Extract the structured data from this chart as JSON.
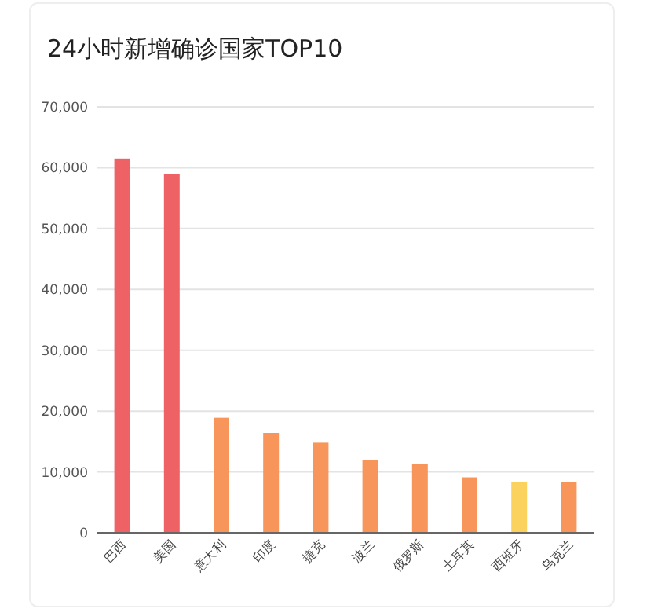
{
  "chart_data": {
    "type": "bar",
    "title": "24小时新增确诊国家TOP10",
    "categories": [
      "巴西",
      "美国",
      "意大利",
      "印度",
      "捷克",
      "波兰",
      "俄罗斯",
      "土耳其",
      "西班牙",
      "乌克兰"
    ],
    "values": [
      61500,
      58900,
      18900,
      16400,
      14800,
      12000,
      11350,
      9100,
      8300,
      8300
    ],
    "colors": [
      "#ee6266",
      "#ee6266",
      "#f7955a",
      "#f7955a",
      "#f7955a",
      "#f7955a",
      "#f7955a",
      "#f7955a",
      "#fcd25f",
      "#f7955a"
    ],
    "ylim": [
      0,
      70000
    ],
    "yticks": [
      {
        "value": 0,
        "label": "0"
      },
      {
        "value": 10000,
        "label": "10,000"
      },
      {
        "value": 20000,
        "label": "20,000"
      },
      {
        "value": 30000,
        "label": "30,000"
      },
      {
        "value": 40000,
        "label": "40,000"
      },
      {
        "value": 50000,
        "label": "50,000"
      },
      {
        "value": 60000,
        "label": "60,000"
      },
      {
        "value": 70000,
        "label": "70,000"
      }
    ],
    "grid": "y"
  }
}
